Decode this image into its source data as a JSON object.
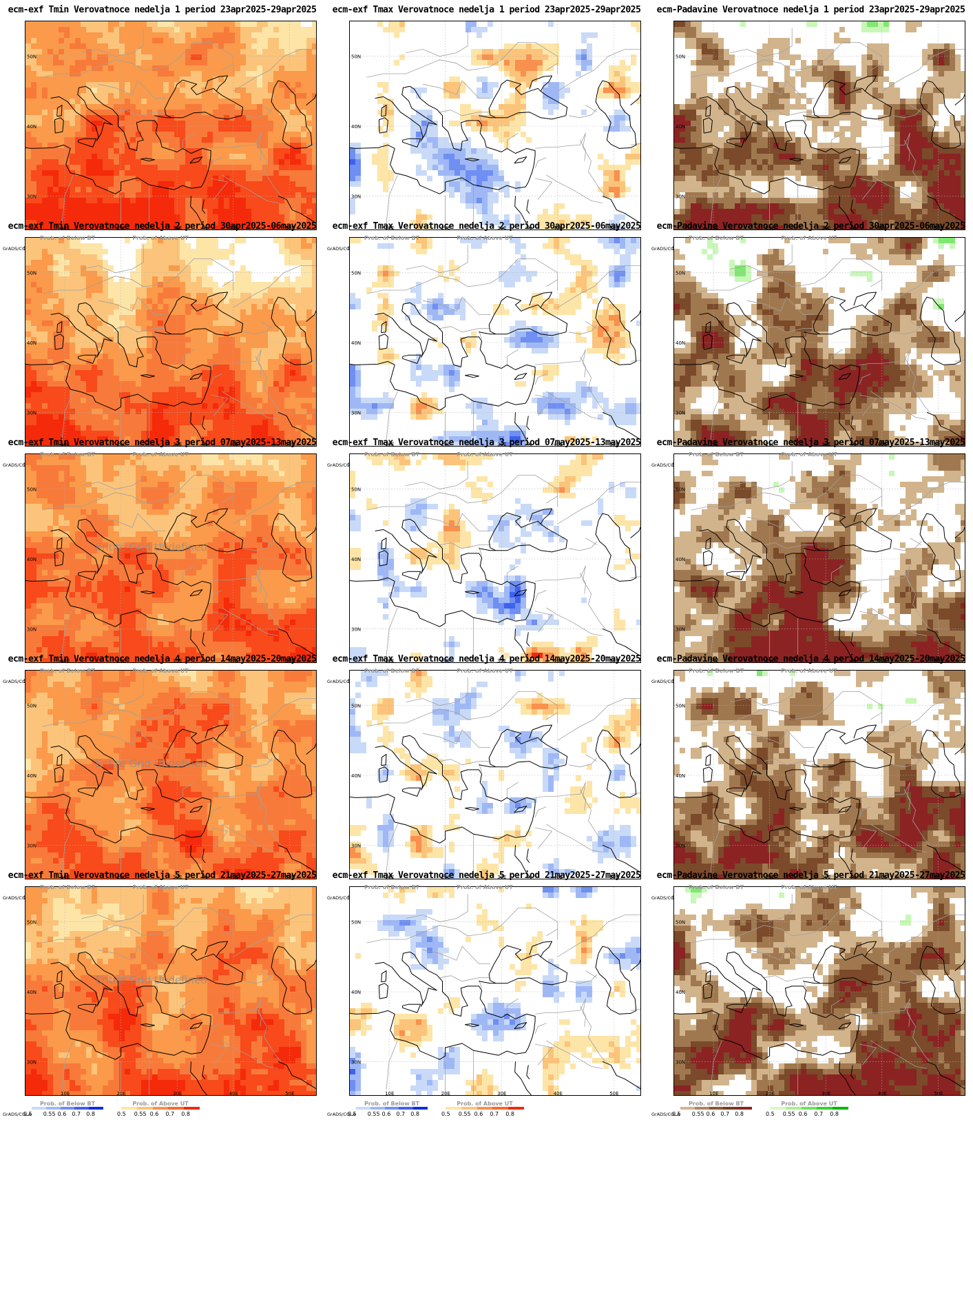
{
  "credit": "GrADS/COLA",
  "lon_ticks": [
    "10E",
    "20E",
    "30E",
    "40E",
    "50E"
  ],
  "lat_ticks": [
    "50N",
    "40N",
    "30N"
  ],
  "legend_levels": [
    "0.5",
    "0.55",
    "0.6",
    "0.7",
    "0.8"
  ],
  "legends": {
    "temp": [
      {
        "title": "Prob. of Below BT",
        "colors": [
          "#c9daf8",
          "#9fb8f5",
          "#6f8ff2",
          "#3e62ec",
          "#0c2ee0"
        ]
      },
      {
        "title": "Prob. of Above UT",
        "colors": [
          "#fde5a8",
          "#fbc47a",
          "#f9904e",
          "#f76a2e",
          "#f02a10"
        ]
      }
    ],
    "precip": [
      {
        "title": "Prob. of Below BT",
        "colors": [
          "#d2b48c",
          "#b08560",
          "#8b5a2b",
          "#7a3a1e",
          "#8b2323"
        ]
      },
      {
        "title": "Prob. of Above UT",
        "colors": [
          "#d8f8c8",
          "#a8f090",
          "#70e060",
          "#38d030",
          "#00b800"
        ]
      }
    ]
  },
  "colors": {
    "tmin_above": [
      "#fde5a8",
      "#fbc47a",
      "#fa9a4a",
      "#f87a3a",
      "#f84a1a",
      "#f52a0a"
    ],
    "tmax_below": [
      "#c9daf8",
      "#9fb8f5",
      "#6f8ff2",
      "#3e62ec",
      "#0c2ee0"
    ],
    "tmax_above": [
      "#fde5a8",
      "#fbc47a",
      "#f9904e",
      "#f02a10"
    ],
    "precip_below": [
      "#d2b48c",
      "#a07850",
      "#7a4a2a",
      "#8b2323"
    ],
    "precip_above": [
      "#c8f7b8",
      "#80e870",
      "#00c800"
    ],
    "coast": "#000000",
    "border": "#a0a0a0"
  },
  "panels": [
    {
      "title": "ecm-exf Tmin Verovatnoce nedelja 1 period 23apr2025-29apr2025",
      "kind": "tmin",
      "week": 1,
      "undefined_text": ""
    },
    {
      "title": "ecm-exf Tmax Verovatnoce nedelja 1 period 23apr2025-29apr2025",
      "kind": "tmax",
      "week": 1,
      "undefined_text": ""
    },
    {
      "title": "ecm-Padavine Verovatnoce nedelja 1 period 23apr2025-29apr2025",
      "kind": "precip",
      "week": 1,
      "undefined_text": ""
    },
    {
      "title": "ecm-exf Tmin Verovatnoce nedelja 2 period 30apr2025-06may2025",
      "kind": "tmin",
      "week": 2,
      "undefined_text": ""
    },
    {
      "title": "ecm-exf Tmax Verovatnoce nedelja 2 period 30apr2025-06may2025",
      "kind": "tmax",
      "week": 2,
      "undefined_text": ""
    },
    {
      "title": "ecm-Padavine Verovatnoce nedelja 2 period 30apr2025-06may2025",
      "kind": "precip",
      "week": 2,
      "undefined_text": ""
    },
    {
      "title": "ecm-exf Tmin Verovatnoce nedelja 3 period 07may2025-13may2025",
      "kind": "tmin",
      "week": 3,
      "undefined_text": "Entire Grid Undefined"
    },
    {
      "title": "ecm-exf Tmax Verovatnoce nedelja 3 period 07may2025-13may2025",
      "kind": "tmax",
      "week": 3,
      "undefined_text": ""
    },
    {
      "title": "ecm-Padavine Verovatnoce nedelja 3 period 07may2025-13may2025",
      "kind": "precip",
      "week": 3,
      "undefined_text": ""
    },
    {
      "title": "ecm-exf Tmin Verovatnoce nedelja 4 period 14may2025-20may2025",
      "kind": "tmin",
      "week": 4,
      "undefined_text": "Entire Grid Undefined"
    },
    {
      "title": "ecm-exf Tmax Verovatnoce nedelja 4 period 14may2025-20may2025",
      "kind": "tmax",
      "week": 4,
      "undefined_text": ""
    },
    {
      "title": "ecm-Padavine Verovatnoce nedelja 4 period 14may2025-20may2025",
      "kind": "precip",
      "week": 4,
      "undefined_text": ""
    },
    {
      "title": "ecm-exf Tmin Verovatnoce nedelja 5 period 21may2025-27may2025",
      "kind": "tmin",
      "week": 5,
      "undefined_text": "Entire Grid Undefined"
    },
    {
      "title": "ecm-exf Tmax Verovatnoce nedelja 5 period 21may2025-27may2025",
      "kind": "tmax",
      "week": 5,
      "undefined_text": ""
    },
    {
      "title": "ecm-Padavine Verovatnoce nedelja 5 period 21may2025-27may2025",
      "kind": "precip",
      "week": 5,
      "undefined_text": ""
    }
  ]
}
